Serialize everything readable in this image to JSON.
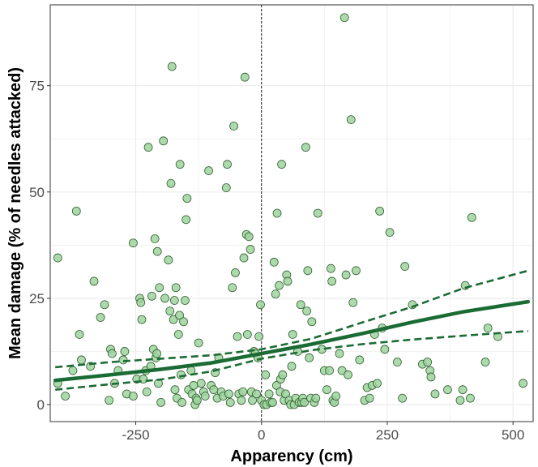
{
  "chart_data": {
    "type": "scatter",
    "xlabel": "Apparency (cm)",
    "ylabel": "Mean damage (% of needles attacked)",
    "xlim": [
      -420,
      540
    ],
    "ylim": [
      -4,
      94
    ],
    "x_ticks": [
      -250,
      0,
      250,
      500
    ],
    "y_ticks": [
      0,
      25,
      50,
      75
    ],
    "x_tick_labels": [
      "-250",
      "0",
      "250",
      "500"
    ],
    "y_tick_labels": [
      "0",
      "25",
      "50",
      "75"
    ],
    "reference_line_x": 0,
    "grid": true,
    "colors": {
      "point_fill": "#9fd39f",
      "point_stroke": "#2f5f2f",
      "fit_line": "#1b6b34",
      "reference_line": "#000000",
      "panel_border": "#333333",
      "grid": "#ebebeb"
    },
    "points": [
      [
        -405,
        34.5
      ],
      [
        -405,
        5
      ],
      [
        -390,
        2
      ],
      [
        -375,
        8
      ],
      [
        -368,
        45.5
      ],
      [
        -362,
        16.5
      ],
      [
        -358,
        10.5
      ],
      [
        -340,
        9
      ],
      [
        -333,
        29
      ],
      [
        -320,
        20.5
      ],
      [
        -312,
        23.5
      ],
      [
        -303,
        1
      ],
      [
        -300,
        13
      ],
      [
        -297,
        12
      ],
      [
        -292,
        5
      ],
      [
        -285,
        8
      ],
      [
        -275,
        10.5
      ],
      [
        -272,
        12.5
      ],
      [
        -268,
        2.5
      ],
      [
        -255,
        38
      ],
      [
        -255,
        2
      ],
      [
        -248,
        6
      ],
      [
        -242,
        25
      ],
      [
        -240,
        24
      ],
      [
        -238,
        20
      ],
      [
        -235,
        6
      ],
      [
        -230,
        8
      ],
      [
        -228,
        3
      ],
      [
        -225,
        60.5
      ],
      [
        -220,
        9
      ],
      [
        -218,
        25.5
      ],
      [
        -215,
        13
      ],
      [
        -212,
        39
      ],
      [
        -210,
        11
      ],
      [
        -208,
        12
      ],
      [
        -207,
        36
      ],
      [
        -205,
        5
      ],
      [
        -203,
        27.5
      ],
      [
        -200,
        0.5
      ],
      [
        -195,
        62
      ],
      [
        -192,
        25
      ],
      [
        -185,
        34
      ],
      [
        -182,
        22
      ],
      [
        -180,
        52
      ],
      [
        -178,
        79.5
      ],
      [
        -175,
        20
      ],
      [
        -173,
        24.5
      ],
      [
        -172,
        3.5
      ],
      [
        -170,
        27.5
      ],
      [
        -168,
        1.5
      ],
      [
        -165,
        16.5
      ],
      [
        -163,
        21
      ],
      [
        -162,
        56.5
      ],
      [
        -160,
        7
      ],
      [
        -158,
        0.5
      ],
      [
        -155,
        19.5
      ],
      [
        -152,
        24.5
      ],
      [
        -150,
        43.5
      ],
      [
        -148,
        48.5
      ],
      [
        -145,
        3.5
      ],
      [
        -140,
        8
      ],
      [
        -138,
        2.5
      ],
      [
        -135,
        4.5
      ],
      [
        -132,
        0
      ],
      [
        -130,
        1.5
      ],
      [
        -128,
        1
      ],
      [
        -125,
        14.5
      ],
      [
        -120,
        5
      ],
      [
        -115,
        3
      ],
      [
        -112,
        2
      ],
      [
        -105,
        55
      ],
      [
        -100,
        4.5
      ],
      [
        -95,
        3.5
      ],
      [
        -92,
        7.5
      ],
      [
        -88,
        1.5
      ],
      [
        -85,
        11
      ],
      [
        -80,
        3
      ],
      [
        -76,
        2
      ],
      [
        -70,
        51
      ],
      [
        -68,
        56.5
      ],
      [
        -65,
        2.5
      ],
      [
        -62,
        0.5
      ],
      [
        -58,
        27.5
      ],
      [
        -55,
        65.5
      ],
      [
        -52,
        31
      ],
      [
        -48,
        16
      ],
      [
        -45,
        2.5
      ],
      [
        -40,
        1
      ],
      [
        -37,
        3
      ],
      [
        -35,
        34.5
      ],
      [
        -33,
        77
      ],
      [
        -30,
        40
      ],
      [
        -28,
        16.5
      ],
      [
        -25,
        39.5
      ],
      [
        -22,
        36.5
      ],
      [
        -20,
        3
      ],
      [
        -18,
        1
      ],
      [
        -15,
        12.5
      ],
      [
        -12,
        12
      ],
      [
        -10,
        2.5
      ],
      [
        -7,
        11
      ],
      [
        -5,
        16
      ],
      [
        -2,
        23.5
      ],
      [
        0,
        1
      ],
      [
        5,
        0
      ],
      [
        8,
        7
      ],
      [
        10,
        0
      ],
      [
        15,
        2.5
      ],
      [
        18,
        0.5
      ],
      [
        22,
        0.5
      ],
      [
        25,
        33.5
      ],
      [
        28,
        26
      ],
      [
        30,
        4.5
      ],
      [
        31,
        45
      ],
      [
        35,
        28
      ],
      [
        37,
        3
      ],
      [
        38,
        6
      ],
      [
        40,
        56.5
      ],
      [
        42,
        7
      ],
      [
        45,
        1
      ],
      [
        48,
        2.5
      ],
      [
        50,
        30.5
      ],
      [
        52,
        29
      ],
      [
        55,
        1
      ],
      [
        58,
        0
      ],
      [
        60,
        9
      ],
      [
        62,
        16.5
      ],
      [
        65,
        0
      ],
      [
        68,
        1.5
      ],
      [
        72,
        12.5
      ],
      [
        75,
        0.5
      ],
      [
        78,
        23.5
      ],
      [
        80,
        0.5
      ],
      [
        82,
        1.5
      ],
      [
        85,
        0.5
      ],
      [
        88,
        60.5
      ],
      [
        90,
        22
      ],
      [
        92,
        31.5
      ],
      [
        95,
        11
      ],
      [
        98,
        1.5
      ],
      [
        100,
        19.5
      ],
      [
        105,
        0.5
      ],
      [
        108,
        1.5
      ],
      [
        112,
        45
      ],
      [
        120,
        13
      ],
      [
        125,
        8
      ],
      [
        130,
        3.5
      ],
      [
        135,
        8
      ],
      [
        138,
        32
      ],
      [
        140,
        29
      ],
      [
        142,
        1
      ],
      [
        145,
        0.5
      ],
      [
        148,
        2
      ],
      [
        155,
        12
      ],
      [
        160,
        8
      ],
      [
        165,
        91
      ],
      [
        168,
        30.5
      ],
      [
        172,
        7
      ],
      [
        178,
        67
      ],
      [
        182,
        24
      ],
      [
        188,
        31.5
      ],
      [
        195,
        10.5
      ],
      [
        205,
        1
      ],
      [
        210,
        4
      ],
      [
        215,
        1.5
      ],
      [
        220,
        4.5
      ],
      [
        225,
        16.5
      ],
      [
        230,
        5
      ],
      [
        235,
        45.5
      ],
      [
        240,
        18
      ],
      [
        245,
        13
      ],
      [
        255,
        40.5
      ],
      [
        270,
        10
      ],
      [
        280,
        1.5
      ],
      [
        285,
        32.5
      ],
      [
        300,
        23.5
      ],
      [
        320,
        9.5
      ],
      [
        330,
        10
      ],
      [
        335,
        8
      ],
      [
        337,
        6.5
      ],
      [
        345,
        2.5
      ],
      [
        370,
        3.5
      ],
      [
        395,
        1
      ],
      [
        400,
        3.5
      ],
      [
        405,
        28
      ],
      [
        415,
        1.5
      ],
      [
        418,
        44
      ],
      [
        445,
        10
      ],
      [
        450,
        18
      ],
      [
        470,
        16
      ],
      [
        520,
        5
      ]
    ],
    "fit_line": [
      [
        -410,
        5.7
      ],
      [
        -300,
        7.0
      ],
      [
        -200,
        8.3
      ],
      [
        -100,
        9.8
      ],
      [
        0,
        12.0
      ],
      [
        100,
        14.2
      ],
      [
        200,
        16.7
      ],
      [
        300,
        19.4
      ],
      [
        400,
        21.8
      ],
      [
        530,
        24.2
      ]
    ],
    "ci_upper": [
      [
        -410,
        8.8
      ],
      [
        -300,
        10.0
      ],
      [
        -200,
        10.8
      ],
      [
        -100,
        11.6
      ],
      [
        0,
        13.0
      ],
      [
        100,
        15.5
      ],
      [
        200,
        19.3
      ],
      [
        300,
        23.0
      ],
      [
        400,
        27.3
      ],
      [
        530,
        31.5
      ]
    ],
    "ci_lower": [
      [
        -410,
        3.5
      ],
      [
        -300,
        4.8
      ],
      [
        -200,
        5.9
      ],
      [
        -100,
        7.8
      ],
      [
        0,
        10.8
      ],
      [
        100,
        12.8
      ],
      [
        200,
        14.2
      ],
      [
        300,
        15.3
      ],
      [
        400,
        16.2
      ],
      [
        530,
        17.3
      ]
    ]
  }
}
